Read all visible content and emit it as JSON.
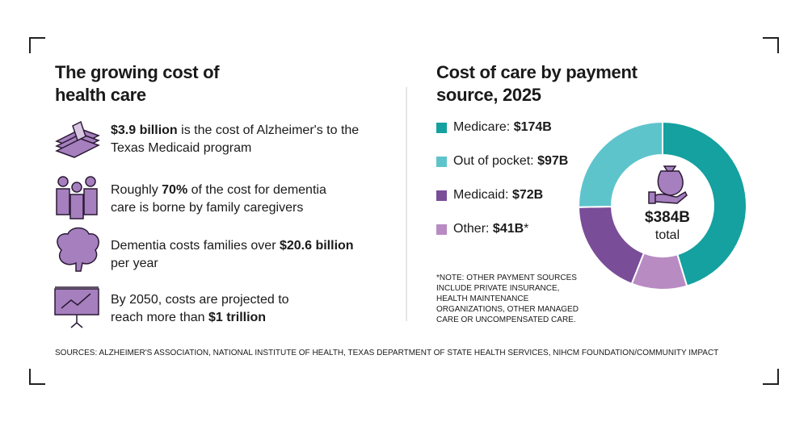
{
  "left": {
    "title": "The growing cost of health care",
    "items": [
      {
        "bold": "$3.9 billion",
        "after": " is the cost of Alzheimer's to the Texas Medicaid program"
      },
      {
        "before": "Roughly ",
        "bold": "70%",
        "after": " of the cost for dementia care is borne by family caregivers"
      },
      {
        "before": "Dementia costs families over ",
        "bold": "$20.6 billion",
        "after": " per year"
      },
      {
        "before": "By 2050, costs are projected to reach more than ",
        "bold": "$1 trillion"
      }
    ]
  },
  "chart_data": {
    "type": "donut",
    "title": "Cost of care by payment source, 2025",
    "categories": [
      "Medicare:",
      "Out of pocket:",
      "Medicaid:",
      "Other:"
    ],
    "values": [
      174,
      97,
      72,
      41
    ],
    "value_labels": [
      "$174B",
      "$97B",
      "$72B",
      "$41B"
    ],
    "footnote_markers": [
      null,
      null,
      null,
      "*"
    ],
    "colors": [
      "#14a19f",
      "#5ec4cc",
      "#7a4d98",
      "#b88bc3"
    ],
    "center_label": "$384B",
    "center_sublabel": "total",
    "note": "*NOTE: OTHER PAYMENT SOURCES INCLUDE PRIVATE INSURANCE, HEALTH MAINTENANCE ORGANIZATIONS, OTHER MANAGED CARE OR UNCOMPENSATED CARE."
  },
  "sources": "SOURCES: ALZHEIMER'S ASSOCIATION, NATIONAL INSTITUTE OF HEALTH, TEXAS DEPARTMENT OF STATE HEALTH SERVICES, NIHCM FOUNDATION/COMMUNITY IMPACT"
}
